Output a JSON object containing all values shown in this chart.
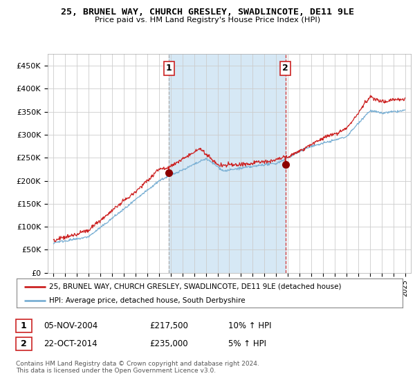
{
  "title": "25, BRUNEL WAY, CHURCH GRESLEY, SWADLINCOTE, DE11 9LE",
  "subtitle": "Price paid vs. HM Land Registry's House Price Index (HPI)",
  "legend_line1": "25, BRUNEL WAY, CHURCH GRESLEY, SWADLINCOTE, DE11 9LE (detached house)",
  "legend_line2": "HPI: Average price, detached house, South Derbyshire",
  "sale1_date": "05-NOV-2004",
  "sale1_price": "£217,500",
  "sale1_hpi": "10% ↑ HPI",
  "sale2_date": "22-OCT-2014",
  "sale2_price": "£235,000",
  "sale2_hpi": "5% ↑ HPI",
  "footnote": "Contains HM Land Registry data © Crown copyright and database right 2024.\nThis data is licensed under the Open Government Licence v3.0.",
  "hpi_color": "#7ab0d4",
  "price_color": "#cc2222",
  "sale_marker_color": "#8b0000",
  "background_color": "#ffffff",
  "plot_bg_color": "#ffffff",
  "shade_color": "#d6e8f5",
  "vline1_color": "#aaaaaa",
  "vline2_color": "#cc3333",
  "grid_color": "#cccccc",
  "box_edge_color": "#cc2222",
  "sale1_year": 2004.85,
  "sale2_year": 2014.8,
  "ylim": [
    0,
    475000
  ],
  "xlim_start": 1994.5,
  "xlim_end": 2025.5,
  "yticks": [
    0,
    50000,
    100000,
    150000,
    200000,
    250000,
    300000,
    350000,
    400000,
    450000
  ],
  "ylabels": [
    "£0",
    "£50K",
    "£100K",
    "£150K",
    "£200K",
    "£250K",
    "£300K",
    "£350K",
    "£400K",
    "£450K"
  ]
}
